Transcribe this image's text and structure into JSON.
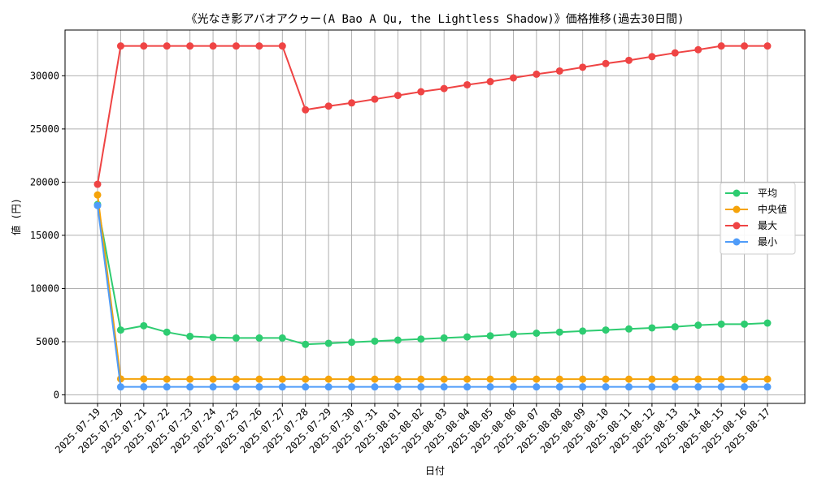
{
  "chart_data": {
    "type": "line",
    "title": "《光なき影アバオアクゥー(A Bao A Qu, the Lightless Shadow)》価格推移(過去30日間)",
    "xlabel": "日付",
    "ylabel": "値 (円)",
    "ylim": [
      -800,
      34300
    ],
    "yticks": [
      0,
      5000,
      10000,
      15000,
      20000,
      25000,
      30000
    ],
    "ytick_labels": [
      "0",
      "5000",
      "10000",
      "15000",
      "20000",
      "25000",
      "30000"
    ],
    "grid": true,
    "legend_position": "center-right",
    "categories": [
      "2025-07-19",
      "2025-07-20",
      "2025-07-21",
      "2025-07-22",
      "2025-07-23",
      "2025-07-24",
      "2025-07-25",
      "2025-07-26",
      "2025-07-27",
      "2025-07-28",
      "2025-07-29",
      "2025-07-30",
      "2025-07-31",
      "2025-08-01",
      "2025-08-02",
      "2025-08-03",
      "2025-08-04",
      "2025-08-05",
      "2025-08-06",
      "2025-08-07",
      "2025-08-08",
      "2025-08-09",
      "2025-08-10",
      "2025-08-11",
      "2025-08-12",
      "2025-08-13",
      "2025-08-14",
      "2025-08-15",
      "2025-08-16",
      "2025-08-17"
    ],
    "series": [
      {
        "name": "平均",
        "color": "#2ecc71",
        "values": [
          17900,
          6100,
          6500,
          5900,
          5500,
          5400,
          5350,
          5350,
          5350,
          4750,
          4850,
          4950,
          5050,
          5150,
          5250,
          5350,
          5450,
          5550,
          5700,
          5800,
          5900,
          6000,
          6100,
          6200,
          6300,
          6400,
          6550,
          6650,
          6650,
          6750
        ]
      },
      {
        "name": "中央値",
        "color": "#f5a30a",
        "values": [
          18800,
          1500,
          1500,
          1480,
          1480,
          1480,
          1480,
          1480,
          1480,
          1480,
          1480,
          1480,
          1480,
          1480,
          1480,
          1480,
          1480,
          1480,
          1480,
          1480,
          1480,
          1480,
          1480,
          1480,
          1480,
          1480,
          1480,
          1480,
          1480,
          1480
        ]
      },
      {
        "name": "最大",
        "color": "#ef4444",
        "values": [
          19800,
          32800,
          32800,
          32800,
          32800,
          32800,
          32800,
          32800,
          32800,
          26800,
          27150,
          27450,
          27800,
          28150,
          28500,
          28800,
          29150,
          29450,
          29800,
          30150,
          30450,
          30800,
          31150,
          31450,
          31800,
          32150,
          32450,
          32800,
          32800,
          32800
        ]
      },
      {
        "name": "最小",
        "color": "#4f9cf9",
        "values": [
          17800,
          750,
          750,
          750,
          750,
          750,
          750,
          750,
          750,
          750,
          750,
          750,
          750,
          750,
          750,
          750,
          750,
          750,
          750,
          750,
          750,
          750,
          750,
          750,
          750,
          750,
          750,
          750,
          750,
          750
        ]
      }
    ]
  }
}
